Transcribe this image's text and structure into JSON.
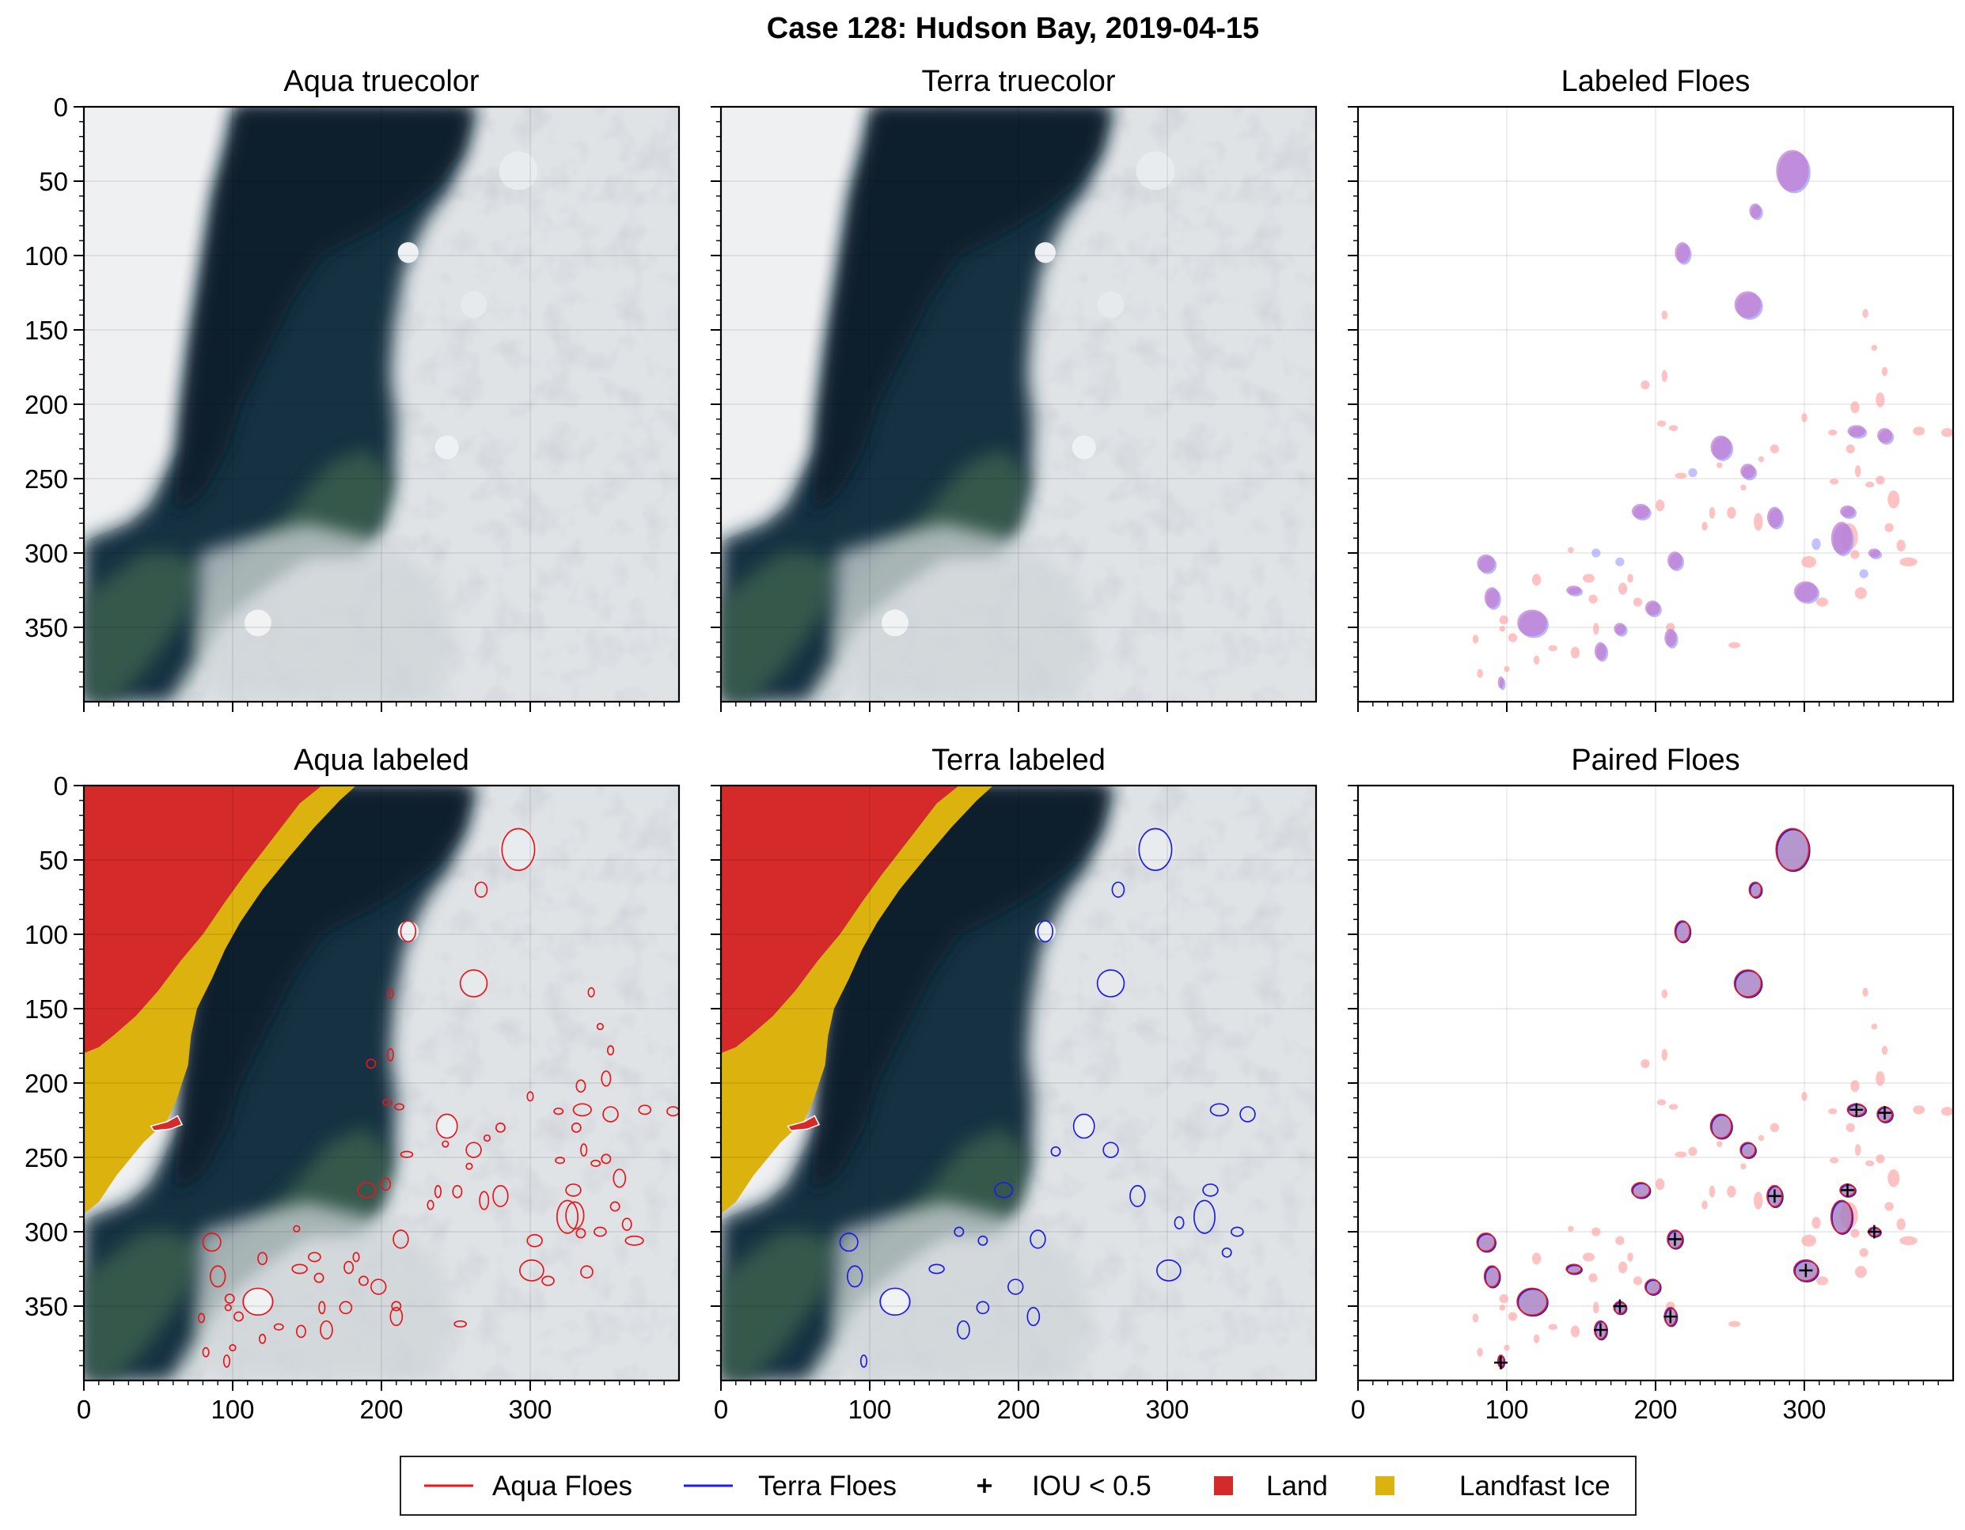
{
  "figure": {
    "title": "Case 128: Hudson Bay, 2019-04-15"
  },
  "legend": {
    "placement": "bottom-center",
    "entries": [
      {
        "label": "Aqua Floes",
        "symbol": "line",
        "color": "#e8161b"
      },
      {
        "label": "Terra Floes",
        "symbol": "line",
        "color": "#1d1de6"
      },
      {
        "label": "IOU < 0.5",
        "symbol": "plus",
        "color": "#000000"
      },
      {
        "label": "Land",
        "symbol": "square",
        "color": "#d42a2a"
      },
      {
        "label": "Landfast Ice",
        "symbol": "square",
        "color": "#dcb20e"
      }
    ]
  },
  "colors": {
    "aqua_floe": "#e8161b",
    "terra_floe": "#1d1de6",
    "land": "#d42a2a",
    "landfast_ice": "#dcb20e",
    "sea_ice": "#dfe3e6",
    "water_dark": "#12233a",
    "water_turbid": "#355a4c"
  },
  "chart_data": [
    {
      "type": "heatmap",
      "title": "Aqua truecolor",
      "xlim": [
        0,
        400
      ],
      "ylim": [
        400,
        0
      ],
      "xticks": [],
      "yticks": [
        0,
        50,
        100,
        150,
        200,
        250,
        300,
        350
      ],
      "grid": true,
      "layer": "truecolor"
    },
    {
      "type": "heatmap",
      "title": "Terra truecolor",
      "xlim": [
        0,
        400
      ],
      "ylim": [
        400,
        0
      ],
      "xticks": [],
      "yticks": [],
      "grid": true,
      "layer": "truecolor"
    },
    {
      "type": "scatter",
      "title": "Labeled Floes",
      "xlim": [
        0,
        400
      ],
      "ylim": [
        400,
        0
      ],
      "xticks": [],
      "yticks": [],
      "grid": true,
      "layer": "labeled"
    },
    {
      "type": "heatmap",
      "title": "Aqua labeled",
      "xlim": [
        0,
        400
      ],
      "ylim": [
        400,
        0
      ],
      "xticks": [
        0,
        100,
        200,
        300
      ],
      "yticks": [
        0,
        50,
        100,
        150,
        200,
        250,
        300,
        350
      ],
      "grid": true,
      "layer": "aqua-labeled"
    },
    {
      "type": "heatmap",
      "title": "Terra labeled",
      "xlim": [
        0,
        400
      ],
      "ylim": [
        400,
        0
      ],
      "xticks": [
        0,
        100,
        200,
        300
      ],
      "yticks": [],
      "grid": true,
      "layer": "terra-labeled"
    },
    {
      "type": "scatter",
      "title": "Paired Floes",
      "xlim": [
        0,
        400
      ],
      "ylim": [
        400,
        0
      ],
      "xticks": [
        0,
        100,
        200,
        300
      ],
      "yticks": [],
      "grid": true,
      "layer": "paired"
    }
  ],
  "floes": {
    "paired": [
      {
        "x": 292,
        "y": 43,
        "rx": 11,
        "ry": 14
      },
      {
        "x": 262,
        "y": 133,
        "rx": 9,
        "ry": 9
      },
      {
        "x": 117,
        "y": 347,
        "rx": 10,
        "ry": 9
      },
      {
        "x": 244,
        "y": 229,
        "rx": 7,
        "ry": 8
      },
      {
        "x": 218,
        "y": 98,
        "rx": 5,
        "ry": 7
      },
      {
        "x": 267,
        "y": 70,
        "rx": 4,
        "ry": 5
      },
      {
        "x": 86,
        "y": 307,
        "rx": 6,
        "ry": 6
      },
      {
        "x": 90,
        "y": 330,
        "rx": 5,
        "ry": 7
      },
      {
        "x": 190,
        "y": 272,
        "rx": 6,
        "ry": 5
      },
      {
        "x": 262,
        "y": 245,
        "rx": 5,
        "ry": 5
      },
      {
        "x": 301,
        "y": 326,
        "rx": 8,
        "ry": 7
      },
      {
        "x": 325,
        "y": 290,
        "rx": 7,
        "ry": 11
      },
      {
        "x": 280,
        "y": 276,
        "rx": 5,
        "ry": 7
      },
      {
        "x": 198,
        "y": 337,
        "rx": 5,
        "ry": 5
      },
      {
        "x": 213,
        "y": 305,
        "rx": 5,
        "ry": 6
      },
      {
        "x": 210,
        "y": 357,
        "rx": 4,
        "ry": 6
      },
      {
        "x": 163,
        "y": 366,
        "rx": 4,
        "ry": 6
      },
      {
        "x": 176,
        "y": 351,
        "rx": 4,
        "ry": 4
      },
      {
        "x": 96,
        "y": 387,
        "rx": 2,
        "ry": 4
      },
      {
        "x": 145,
        "y": 325,
        "rx": 5,
        "ry": 3
      },
      {
        "x": 335,
        "y": 218,
        "rx": 6,
        "ry": 4
      },
      {
        "x": 354,
        "y": 221,
        "rx": 5,
        "ry": 5
      },
      {
        "x": 329,
        "y": 272,
        "rx": 5,
        "ry": 4
      },
      {
        "x": 347,
        "y": 300,
        "rx": 4,
        "ry": 3
      }
    ],
    "aqua_only": [
      {
        "x": 206,
        "y": 181,
        "rx": 2,
        "ry": 4
      },
      {
        "x": 217,
        "y": 248,
        "rx": 4,
        "ry": 2
      },
      {
        "x": 238,
        "y": 273,
        "rx": 2,
        "ry": 4
      },
      {
        "x": 203,
        "y": 268,
        "rx": 3,
        "ry": 4
      },
      {
        "x": 251,
        "y": 273,
        "rx": 3,
        "ry": 4
      },
      {
        "x": 269,
        "y": 279,
        "rx": 3,
        "ry": 6
      },
      {
        "x": 303,
        "y": 306,
        "rx": 5,
        "ry": 4
      },
      {
        "x": 330,
        "y": 289,
        "rx": 6,
        "ry": 9
      },
      {
        "x": 320,
        "y": 252,
        "rx": 3,
        "ry": 2
      },
      {
        "x": 336,
        "y": 245,
        "rx": 2,
        "ry": 4
      },
      {
        "x": 344,
        "y": 254,
        "rx": 3,
        "ry": 2
      },
      {
        "x": 331,
        "y": 230,
        "rx": 3,
        "ry": 3
      },
      {
        "x": 334,
        "y": 202,
        "rx": 3,
        "ry": 4
      },
      {
        "x": 351,
        "y": 197,
        "rx": 3,
        "ry": 5
      },
      {
        "x": 351,
        "y": 251,
        "rx": 3,
        "ry": 3
      },
      {
        "x": 360,
        "y": 264,
        "rx": 4,
        "ry": 6
      },
      {
        "x": 365,
        "y": 295,
        "rx": 3,
        "ry": 4
      },
      {
        "x": 370,
        "y": 306,
        "rx": 6,
        "ry": 3
      },
      {
        "x": 334,
        "y": 301,
        "rx": 3,
        "ry": 3
      },
      {
        "x": 312,
        "y": 333,
        "rx": 4,
        "ry": 3
      },
      {
        "x": 338,
        "y": 327,
        "rx": 4,
        "ry": 4
      },
      {
        "x": 377,
        "y": 218,
        "rx": 4,
        "ry": 3
      },
      {
        "x": 396,
        "y": 219,
        "rx": 4,
        "ry": 3
      },
      {
        "x": 354,
        "y": 178,
        "rx": 2,
        "ry": 3
      },
      {
        "x": 341,
        "y": 139,
        "rx": 2,
        "ry": 3
      },
      {
        "x": 300,
        "y": 209,
        "rx": 2,
        "ry": 3
      },
      {
        "x": 319,
        "y": 219,
        "rx": 3,
        "ry": 2
      },
      {
        "x": 280,
        "y": 230,
        "rx": 3,
        "ry": 3
      },
      {
        "x": 259,
        "y": 256,
        "rx": 2,
        "ry": 2
      },
      {
        "x": 233,
        "y": 282,
        "rx": 2,
        "ry": 3
      },
      {
        "x": 155,
        "y": 317,
        "rx": 4,
        "ry": 3
      },
      {
        "x": 158,
        "y": 331,
        "rx": 3,
        "ry": 3
      },
      {
        "x": 131,
        "y": 364,
        "rx": 3,
        "ry": 2
      },
      {
        "x": 146,
        "y": 367,
        "rx": 3,
        "ry": 4
      },
      {
        "x": 160,
        "y": 351,
        "rx": 2,
        "ry": 4
      },
      {
        "x": 178,
        "y": 324,
        "rx": 3,
        "ry": 4
      },
      {
        "x": 188,
        "y": 333,
        "rx": 3,
        "ry": 3
      },
      {
        "x": 98,
        "y": 345,
        "rx": 3,
        "ry": 3
      },
      {
        "x": 104,
        "y": 357,
        "rx": 3,
        "ry": 3
      },
      {
        "x": 120,
        "y": 372,
        "rx": 2,
        "ry": 3
      },
      {
        "x": 100,
        "y": 378,
        "rx": 2,
        "ry": 2
      },
      {
        "x": 79,
        "y": 358,
        "rx": 2,
        "ry": 3
      },
      {
        "x": 82,
        "y": 381,
        "rx": 2,
        "ry": 3
      },
      {
        "x": 97,
        "y": 351,
        "rx": 2,
        "ry": 2
      },
      {
        "x": 120,
        "y": 318,
        "rx": 3,
        "ry": 4
      },
      {
        "x": 210,
        "y": 350,
        "rx": 3,
        "ry": 3
      },
      {
        "x": 253,
        "y": 362,
        "rx": 4,
        "ry": 2
      },
      {
        "x": 143,
        "y": 298,
        "rx": 2,
        "ry": 2
      },
      {
        "x": 183,
        "y": 317,
        "rx": 2,
        "ry": 3
      },
      {
        "x": 357,
        "y": 283,
        "rx": 3,
        "ry": 3
      },
      {
        "x": 347,
        "y": 162,
        "rx": 2,
        "ry": 2
      },
      {
        "x": 243,
        "y": 241,
        "rx": 2,
        "ry": 2
      },
      {
        "x": 193,
        "y": 187,
        "rx": 3,
        "ry": 3
      },
      {
        "x": 212,
        "y": 216,
        "rx": 3,
        "ry": 2
      },
      {
        "x": 204,
        "y": 213,
        "rx": 3,
        "ry": 2
      },
      {
        "x": 271,
        "y": 237,
        "rx": 2,
        "ry": 2
      },
      {
        "x": 206,
        "y": 140,
        "rx": 2,
        "ry": 3
      }
    ],
    "terra_only": [
      {
        "x": 308,
        "y": 294,
        "rx": 3,
        "ry": 4
      },
      {
        "x": 340,
        "y": 314,
        "rx": 3,
        "ry": 3
      },
      {
        "x": 225,
        "y": 246,
        "rx": 3,
        "ry": 3
      },
      {
        "x": 160,
        "y": 300,
        "rx": 3,
        "ry": 3
      },
      {
        "x": 176,
        "y": 306,
        "rx": 3,
        "ry": 3
      }
    ],
    "iou_markers": [
      {
        "x": 335,
        "y": 218
      },
      {
        "x": 354,
        "y": 220
      },
      {
        "x": 329,
        "y": 272
      },
      {
        "x": 280,
        "y": 276
      },
      {
        "x": 347,
        "y": 300
      },
      {
        "x": 213,
        "y": 305
      },
      {
        "x": 301,
        "y": 326
      },
      {
        "x": 176,
        "y": 350
      },
      {
        "x": 210,
        "y": 357
      },
      {
        "x": 163,
        "y": 366
      },
      {
        "x": 96,
        "y": 388
      }
    ]
  }
}
